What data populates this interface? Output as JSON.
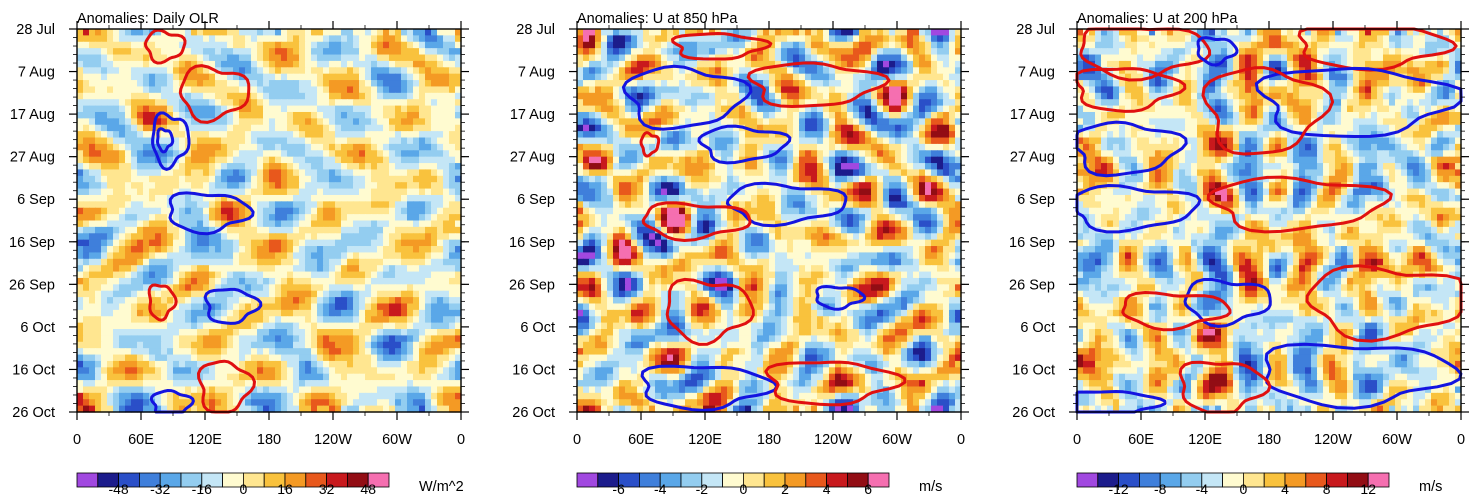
{
  "chart_data": [
    {
      "type": "heatmap",
      "title": "Anomalies: Daily OLR",
      "x_tick_labels": [
        "0",
        "60E",
        "120E",
        "180",
        "120W",
        "60W",
        "0"
      ],
      "x_ticks_deg": [
        0,
        60,
        120,
        180,
        240,
        300,
        360
      ],
      "xlim_deg": [
        0,
        360
      ],
      "y_tick_labels": [
        "28 Jul",
        "7 Aug",
        "17 Aug",
        "27 Aug",
        "6 Sep",
        "16 Sep",
        "26 Sep",
        "6 Oct",
        "16 Oct",
        "26 Oct"
      ],
      "ylim_days": [
        0,
        90
      ],
      "colorbar": {
        "unit": "W/m^2",
        "tick_labels": [
          "-48",
          "-32",
          "-16",
          "0",
          "16",
          "32",
          "48"
        ],
        "levels": [
          -56,
          -48,
          -40,
          -32,
          -24,
          -16,
          -8,
          0,
          8,
          16,
          24,
          32,
          40,
          48,
          56
        ]
      },
      "contours": [
        {
          "color": "red",
          "lon": 82,
          "day": 4,
          "rx": 18,
          "ry": 3.5
        },
        {
          "color": "red",
          "lon": 128,
          "day": 15,
          "rx": 32,
          "ry": 6
        },
        {
          "color": "blue",
          "lon": 87,
          "day": 26,
          "rx": 17,
          "ry": 6
        },
        {
          "color": "blue",
          "lon": 82,
          "day": 26,
          "rx": 7,
          "ry": 2.5
        },
        {
          "color": "blue",
          "lon": 122,
          "day": 43,
          "rx": 38,
          "ry": 4.5
        },
        {
          "color": "red",
          "lon": 79,
          "day": 64,
          "rx": 12,
          "ry": 4
        },
        {
          "color": "blue",
          "lon": 144,
          "day": 65,
          "rx": 24,
          "ry": 4
        },
        {
          "color": "red",
          "lon": 138,
          "day": 84,
          "rx": 24,
          "ry": 6
        },
        {
          "color": "blue",
          "lon": 88,
          "day": 88,
          "rx": 18,
          "ry": 3
        }
      ]
    },
    {
      "type": "heatmap",
      "title": "Anomalies: U at 850 hPa",
      "x_tick_labels": [
        "0",
        "60E",
        "120E",
        "180",
        "120W",
        "60W",
        "0"
      ],
      "x_ticks_deg": [
        0,
        60,
        120,
        180,
        240,
        300,
        360
      ],
      "xlim_deg": [
        0,
        360
      ],
      "y_tick_labels": [
        "28 Jul",
        "7 Aug",
        "17 Aug",
        "27 Aug",
        "6 Sep",
        "16 Sep",
        "26 Sep",
        "6 Oct",
        "16 Oct",
        "26 Oct"
      ],
      "ylim_days": [
        0,
        90
      ],
      "colorbar": {
        "unit": "m/s",
        "tick_labels": [
          "-6",
          "-4",
          "-2",
          "0",
          "2",
          "4",
          "6"
        ],
        "levels": [
          -7,
          -6,
          -5,
          -4,
          -3,
          -2,
          -1,
          0,
          1,
          2,
          3,
          4,
          5,
          6,
          7
        ]
      },
      "contours": [
        {
          "color": "red",
          "lon": 132,
          "day": 4,
          "rx": 42,
          "ry": 3
        },
        {
          "color": "red",
          "lon": 222,
          "day": 13,
          "rx": 60,
          "ry": 5
        },
        {
          "color": "blue",
          "lon": 100,
          "day": 16,
          "rx": 55,
          "ry": 7
        },
        {
          "color": "blue",
          "lon": 155,
          "day": 27,
          "rx": 40,
          "ry": 4
        },
        {
          "color": "red",
          "lon": 68,
          "day": 27,
          "rx": 8,
          "ry": 2.5
        },
        {
          "color": "blue",
          "lon": 195,
          "day": 41,
          "rx": 55,
          "ry": 4.5
        },
        {
          "color": "red",
          "lon": 110,
          "day": 45,
          "rx": 50,
          "ry": 4
        },
        {
          "color": "red",
          "lon": 122,
          "day": 66,
          "rx": 40,
          "ry": 7
        },
        {
          "color": "blue",
          "lon": 245,
          "day": 63,
          "rx": 22,
          "ry": 2.5
        },
        {
          "color": "blue",
          "lon": 118,
          "day": 84,
          "rx": 60,
          "ry": 5
        },
        {
          "color": "red",
          "lon": 237,
          "day": 83,
          "rx": 60,
          "ry": 5
        }
      ]
    },
    {
      "type": "heatmap",
      "title": "Anomalies: U at 200 hPa",
      "x_tick_labels": [
        "0",
        "60E",
        "120E",
        "180",
        "120W",
        "60W",
        "0"
      ],
      "x_ticks_deg": [
        0,
        60,
        120,
        180,
        240,
        300,
        360
      ],
      "xlim_deg": [
        0,
        360
      ],
      "y_tick_labels": [
        "28 Jul",
        "7 Aug",
        "17 Aug",
        "27 Aug",
        "6 Sep",
        "16 Sep",
        "26 Sep",
        "6 Oct",
        "16 Oct",
        "26 Oct"
      ],
      "ylim_days": [
        0,
        90
      ],
      "colorbar": {
        "unit": "m/s",
        "tick_labels": [
          "-12",
          "-8",
          "-4",
          "0",
          "4",
          "8",
          "12"
        ],
        "levels": [
          -14,
          -12,
          -10,
          -8,
          -6,
          -4,
          -2,
          0,
          2,
          4,
          6,
          8,
          10,
          12,
          14
        ]
      },
      "contours": [
        {
          "color": "red",
          "lon": 60,
          "day": 5,
          "rx": 60,
          "ry": 6
        },
        {
          "color": "blue",
          "lon": 130,
          "day": 5,
          "rx": 18,
          "ry": 3
        },
        {
          "color": "red",
          "lon": 275,
          "day": 4,
          "rx": 70,
          "ry": 5
        },
        {
          "color": "red",
          "lon": 45,
          "day": 14,
          "rx": 48,
          "ry": 5
        },
        {
          "color": "blue",
          "lon": 260,
          "day": 17,
          "rx": 90,
          "ry": 8
        },
        {
          "color": "red",
          "lon": 175,
          "day": 19,
          "rx": 55,
          "ry": 10
        },
        {
          "color": "blue",
          "lon": 45,
          "day": 28,
          "rx": 50,
          "ry": 6
        },
        {
          "color": "red",
          "lon": 205,
          "day": 41,
          "rx": 80,
          "ry": 6
        },
        {
          "color": "blue",
          "lon": 50,
          "day": 42,
          "rx": 60,
          "ry": 5
        },
        {
          "color": "red",
          "lon": 290,
          "day": 64,
          "rx": 75,
          "ry": 8
        },
        {
          "color": "blue",
          "lon": 140,
          "day": 64,
          "rx": 40,
          "ry": 5
        },
        {
          "color": "red",
          "lon": 90,
          "day": 66,
          "rx": 50,
          "ry": 4
        },
        {
          "color": "blue",
          "lon": 260,
          "day": 81,
          "rx": 90,
          "ry": 7
        },
        {
          "color": "red",
          "lon": 135,
          "day": 84,
          "rx": 40,
          "ry": 6
        },
        {
          "color": "blue",
          "lon": 30,
          "day": 88,
          "rx": 45,
          "ry": 3
        }
      ]
    }
  ]
}
